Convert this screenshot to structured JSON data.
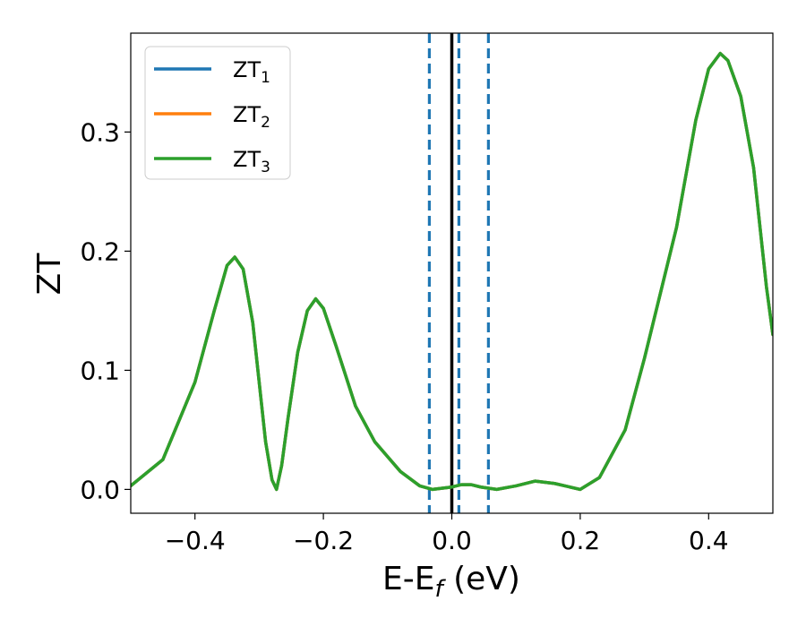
{
  "chart_data": {
    "type": "line",
    "xlabel": {
      "main": "E-E",
      "sub": "f",
      "unit": " (eV)"
    },
    "ylabel": "ZT",
    "xlim": [
      -0.5,
      0.5
    ],
    "ylim": [
      -0.02,
      0.383
    ],
    "xticks": [
      {
        "value": -0.4,
        "label": "−0.4"
      },
      {
        "value": -0.2,
        "label": "−0.2"
      },
      {
        "value": 0.0,
        "label": "0.0"
      },
      {
        "value": 0.2,
        "label": "0.2"
      },
      {
        "value": 0.4,
        "label": "0.4"
      }
    ],
    "yticks": [
      {
        "value": 0.0,
        "label": "0.0"
      },
      {
        "value": 0.1,
        "label": "0.1"
      },
      {
        "value": 0.2,
        "label": "0.2"
      },
      {
        "value": 0.3,
        "label": "0.3"
      }
    ],
    "grid": false,
    "legend_position": "top-left",
    "vertical_lines": [
      {
        "x": 0.0,
        "style": "solid",
        "color": "#000000"
      },
      {
        "x": -0.035,
        "style": "dashed",
        "color": "#1f77b4"
      },
      {
        "x": 0.011,
        "style": "dashed",
        "color": "#1f77b4"
      },
      {
        "x": 0.057,
        "style": "dashed",
        "color": "#1f77b4"
      }
    ],
    "series": [
      {
        "name": {
          "main": "ZT",
          "sub": "1"
        },
        "color": "#1f77b4",
        "points": [
          [
            -0.5,
            0.003
          ],
          [
            -0.45,
            0.025
          ],
          [
            -0.4,
            0.09
          ],
          [
            -0.37,
            0.15
          ],
          [
            -0.35,
            0.188
          ],
          [
            -0.338,
            0.195
          ],
          [
            -0.325,
            0.185
          ],
          [
            -0.31,
            0.14
          ],
          [
            -0.3,
            0.09
          ],
          [
            -0.29,
            0.04
          ],
          [
            -0.28,
            0.008
          ],
          [
            -0.273,
            0.0
          ],
          [
            -0.265,
            0.02
          ],
          [
            -0.255,
            0.06
          ],
          [
            -0.24,
            0.115
          ],
          [
            -0.225,
            0.15
          ],
          [
            -0.212,
            0.16
          ],
          [
            -0.2,
            0.152
          ],
          [
            -0.18,
            0.12
          ],
          [
            -0.15,
            0.07
          ],
          [
            -0.12,
            0.04
          ],
          [
            -0.08,
            0.015
          ],
          [
            -0.05,
            0.003
          ],
          [
            -0.03,
            0.0
          ],
          [
            0.0,
            0.002
          ],
          [
            0.015,
            0.004
          ],
          [
            0.03,
            0.004
          ],
          [
            0.045,
            0.002
          ],
          [
            0.07,
            0.0
          ],
          [
            0.1,
            0.003
          ],
          [
            0.13,
            0.007
          ],
          [
            0.16,
            0.005
          ],
          [
            0.2,
            0.0
          ],
          [
            0.23,
            0.01
          ],
          [
            0.27,
            0.05
          ],
          [
            0.3,
            0.11
          ],
          [
            0.35,
            0.22
          ],
          [
            0.38,
            0.31
          ],
          [
            0.4,
            0.353
          ],
          [
            0.418,
            0.366
          ],
          [
            0.43,
            0.36
          ],
          [
            0.45,
            0.33
          ],
          [
            0.47,
            0.27
          ],
          [
            0.49,
            0.17
          ],
          [
            0.5,
            0.13
          ]
        ]
      },
      {
        "name": {
          "main": "ZT",
          "sub": "2"
        },
        "color": "#ff7f0e",
        "points": [
          [
            -0.5,
            0.003
          ],
          [
            -0.45,
            0.025
          ],
          [
            -0.4,
            0.09
          ],
          [
            -0.37,
            0.15
          ],
          [
            -0.35,
            0.188
          ],
          [
            -0.338,
            0.195
          ],
          [
            -0.325,
            0.185
          ],
          [
            -0.31,
            0.14
          ],
          [
            -0.3,
            0.09
          ],
          [
            -0.29,
            0.04
          ],
          [
            -0.28,
            0.008
          ],
          [
            -0.273,
            0.0
          ],
          [
            -0.265,
            0.02
          ],
          [
            -0.255,
            0.06
          ],
          [
            -0.24,
            0.115
          ],
          [
            -0.225,
            0.15
          ],
          [
            -0.212,
            0.16
          ],
          [
            -0.2,
            0.152
          ],
          [
            -0.18,
            0.12
          ],
          [
            -0.15,
            0.07
          ],
          [
            -0.12,
            0.04
          ],
          [
            -0.08,
            0.015
          ],
          [
            -0.05,
            0.003
          ],
          [
            -0.03,
            0.0
          ],
          [
            0.0,
            0.002
          ],
          [
            0.015,
            0.004
          ],
          [
            0.03,
            0.004
          ],
          [
            0.045,
            0.002
          ],
          [
            0.07,
            0.0
          ],
          [
            0.1,
            0.003
          ],
          [
            0.13,
            0.007
          ],
          [
            0.16,
            0.005
          ],
          [
            0.2,
            0.0
          ],
          [
            0.23,
            0.01
          ],
          [
            0.27,
            0.05
          ],
          [
            0.3,
            0.11
          ],
          [
            0.35,
            0.22
          ],
          [
            0.38,
            0.31
          ],
          [
            0.4,
            0.353
          ],
          [
            0.418,
            0.366
          ],
          [
            0.43,
            0.36
          ],
          [
            0.45,
            0.33
          ],
          [
            0.47,
            0.27
          ],
          [
            0.49,
            0.17
          ],
          [
            0.5,
            0.13
          ]
        ]
      },
      {
        "name": {
          "main": "ZT",
          "sub": "3"
        },
        "color": "#2ca02c",
        "points": [
          [
            -0.5,
            0.003
          ],
          [
            -0.45,
            0.025
          ],
          [
            -0.4,
            0.09
          ],
          [
            -0.37,
            0.15
          ],
          [
            -0.35,
            0.188
          ],
          [
            -0.338,
            0.195
          ],
          [
            -0.325,
            0.185
          ],
          [
            -0.31,
            0.14
          ],
          [
            -0.3,
            0.09
          ],
          [
            -0.29,
            0.04
          ],
          [
            -0.28,
            0.008
          ],
          [
            -0.273,
            0.0
          ],
          [
            -0.265,
            0.02
          ],
          [
            -0.255,
            0.06
          ],
          [
            -0.24,
            0.115
          ],
          [
            -0.225,
            0.15
          ],
          [
            -0.212,
            0.16
          ],
          [
            -0.2,
            0.152
          ],
          [
            -0.18,
            0.12
          ],
          [
            -0.15,
            0.07
          ],
          [
            -0.12,
            0.04
          ],
          [
            -0.08,
            0.015
          ],
          [
            -0.05,
            0.003
          ],
          [
            -0.03,
            0.0
          ],
          [
            0.0,
            0.002
          ],
          [
            0.015,
            0.004
          ],
          [
            0.03,
            0.004
          ],
          [
            0.045,
            0.002
          ],
          [
            0.07,
            0.0
          ],
          [
            0.1,
            0.003
          ],
          [
            0.13,
            0.007
          ],
          [
            0.16,
            0.005
          ],
          [
            0.2,
            0.0
          ],
          [
            0.23,
            0.01
          ],
          [
            0.27,
            0.05
          ],
          [
            0.3,
            0.11
          ],
          [
            0.35,
            0.22
          ],
          [
            0.38,
            0.31
          ],
          [
            0.4,
            0.353
          ],
          [
            0.418,
            0.366
          ],
          [
            0.43,
            0.36
          ],
          [
            0.45,
            0.33
          ],
          [
            0.47,
            0.27
          ],
          [
            0.49,
            0.17
          ],
          [
            0.5,
            0.13
          ]
        ]
      }
    ]
  }
}
